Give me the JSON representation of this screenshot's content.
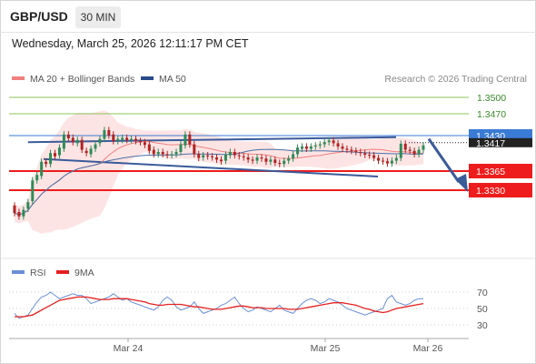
{
  "header": {
    "pair": "GBP/USD",
    "timeframe": "30 MIN"
  },
  "datetime": "Wednesday, March 25, 2026 12:11:17 PM CET",
  "legend": {
    "bb_label": "MA 20 + Bollinger Bands",
    "ma50_label": "MA 50",
    "credit": "Research © 2026 Trading Central"
  },
  "colors": {
    "bullish": "#2e8b57",
    "bearish": "#b22222",
    "bb_fill": "#fde4e4",
    "ma20": "#f08080",
    "ma50": "#4a6fa5",
    "trendline": "#3a5a9a",
    "resistance": "#8cc65a",
    "support": "#ee1c1c",
    "current": "#3a7bd5",
    "rsi": "#6b8fd6",
    "rsi_ma": "#e62020"
  },
  "chart_data": [
    {
      "type": "candlestick",
      "x_axis": {
        "labels": [
          "Mar 24",
          "Mar 25",
          "Mar 26"
        ]
      },
      "levels": [
        {
          "label": "1.3500",
          "kind": "resistance",
          "value": 1.35
        },
        {
          "label": "1.3470",
          "kind": "resistance",
          "value": 1.347
        },
        {
          "label": "1.3430",
          "kind": "current",
          "value": 1.343
        },
        {
          "label": "1.3417",
          "kind": "price",
          "value": 1.3417
        },
        {
          "label": "1.3365",
          "kind": "support",
          "value": 1.3365
        },
        {
          "label": "1.3330",
          "kind": "support",
          "value": 1.333
        }
      ],
      "close": [
        1.3288,
        1.3282,
        1.3294,
        1.3308,
        1.3348,
        1.3358,
        1.3382,
        1.3378,
        1.3398,
        1.3392,
        1.3408,
        1.3432,
        1.3425,
        1.3418,
        1.3422,
        1.3404,
        1.3398,
        1.3406,
        1.3414,
        1.3424,
        1.344,
        1.343,
        1.342,
        1.3424,
        1.3426,
        1.3422,
        1.3424,
        1.342,
        1.3418,
        1.3413,
        1.3402,
        1.3396,
        1.34,
        1.3396,
        1.3394,
        1.3396,
        1.34,
        1.3414,
        1.3432,
        1.3414,
        1.3396,
        1.3389,
        1.3394,
        1.3392,
        1.339,
        1.3386,
        1.3383,
        1.3395,
        1.34,
        1.3394,
        1.3392,
        1.339,
        1.3386,
        1.3384,
        1.339,
        1.3388,
        1.3382,
        1.3386,
        1.338,
        1.3378,
        1.3384,
        1.3388,
        1.3396,
        1.3408,
        1.341,
        1.3406,
        1.341,
        1.3412,
        1.3414,
        1.3418,
        1.3421,
        1.3416,
        1.341,
        1.3406,
        1.3404,
        1.3402,
        1.34,
        1.3398,
        1.3395,
        1.3394,
        1.3389,
        1.3384,
        1.3383,
        1.3379,
        1.3384,
        1.3389,
        1.3415,
        1.3404,
        1.3402,
        1.3396,
        1.3404,
        1.3412
      ],
      "open": [
        1.3302,
        1.329,
        1.3282,
        1.3296,
        1.331,
        1.3348,
        1.3356,
        1.3382,
        1.3378,
        1.3398,
        1.3394,
        1.3406,
        1.3432,
        1.3426,
        1.3416,
        1.3422,
        1.3402,
        1.3396,
        1.3406,
        1.3416,
        1.3424,
        1.344,
        1.3432,
        1.342,
        1.3422,
        1.3426,
        1.3422,
        1.3424,
        1.342,
        1.3418,
        1.3414,
        1.3404,
        1.3396,
        1.34,
        1.3396,
        1.3394,
        1.3396,
        1.34,
        1.3412,
        1.3432,
        1.3414,
        1.3396,
        1.339,
        1.3394,
        1.3392,
        1.339,
        1.3386,
        1.3384,
        1.3394,
        1.34,
        1.3394,
        1.3392,
        1.339,
        1.3386,
        1.3384,
        1.339,
        1.3388,
        1.3382,
        1.3386,
        1.338,
        1.3378,
        1.3384,
        1.3388,
        1.3396,
        1.3406,
        1.341,
        1.3406,
        1.341,
        1.3412,
        1.3414,
        1.3418,
        1.3421,
        1.3416,
        1.341,
        1.3406,
        1.3404,
        1.3402,
        1.34,
        1.3398,
        1.3395,
        1.3394,
        1.3389,
        1.3384,
        1.3383,
        1.3379,
        1.3384,
        1.3389,
        1.3415,
        1.3404,
        1.3402,
        1.3396,
        1.3404
      ]
    },
    {
      "type": "line",
      "name": "RSI",
      "ma_label": "9MA",
      "ylim": [
        20,
        80
      ],
      "ticks": [
        "70",
        "50",
        "30"
      ],
      "rsi": [
        44,
        38,
        40,
        42,
        50,
        58,
        64,
        66,
        70,
        66,
        62,
        64,
        66,
        68,
        66,
        66,
        62,
        56,
        58,
        60,
        62,
        64,
        68,
        64,
        60,
        62,
        58,
        56,
        54,
        52,
        50,
        48,
        52,
        60,
        64,
        60,
        52,
        48,
        50,
        52,
        58,
        50,
        44,
        46,
        48,
        50,
        54,
        56,
        60,
        64,
        56,
        50,
        46,
        48,
        52,
        50,
        48,
        46,
        50,
        54,
        48,
        46,
        44,
        50,
        56,
        60,
        62,
        60,
        56,
        58,
        62,
        60,
        58,
        54,
        50,
        48,
        46,
        44,
        42,
        44,
        46,
        48,
        50,
        62,
        66,
        58,
        56,
        54,
        56,
        60,
        62,
        62
      ],
      "ma9": [
        40,
        40,
        40,
        41,
        42,
        45,
        48,
        51,
        54,
        57,
        60,
        61,
        62,
        63,
        64,
        64,
        64,
        63,
        62,
        61,
        61,
        61,
        62,
        62,
        62,
        62,
        61,
        60,
        59,
        58,
        56,
        55,
        54,
        54,
        55,
        55,
        55,
        55,
        54,
        53,
        52,
        52,
        51,
        50,
        49,
        49,
        49,
        50,
        51,
        52,
        53,
        53,
        52,
        51,
        51,
        51,
        50,
        50,
        50,
        50,
        50,
        49,
        49,
        49,
        50,
        51,
        52,
        53,
        54,
        55,
        56,
        57,
        57,
        57,
        56,
        55,
        54,
        52,
        50,
        49,
        47,
        46,
        45,
        46,
        48,
        50,
        51,
        52,
        53,
        54,
        55,
        56
      ]
    }
  ]
}
